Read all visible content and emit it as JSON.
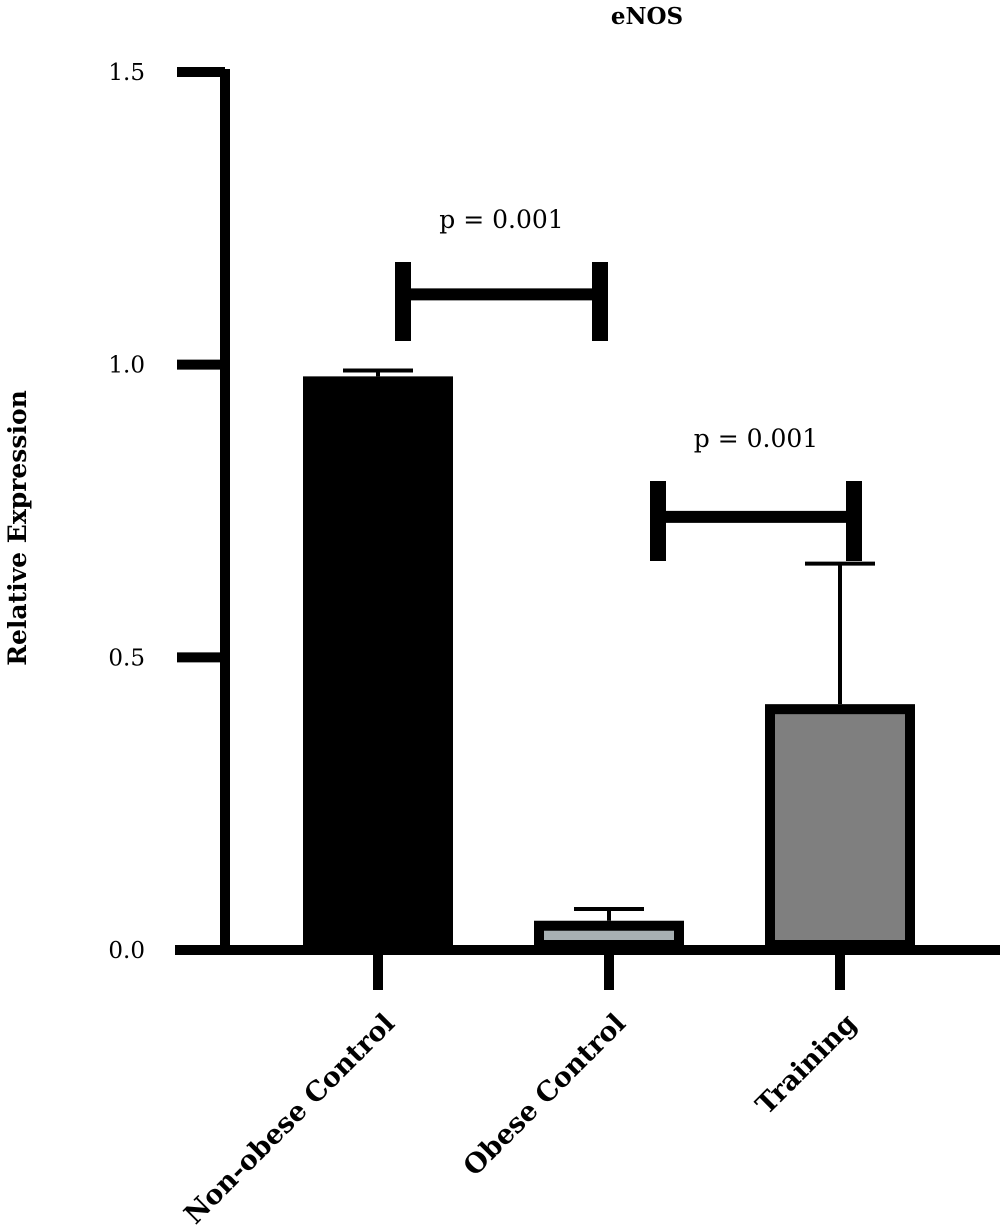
{
  "chart_data": {
    "type": "bar",
    "title": "eNOS",
    "xlabel": "",
    "ylabel": "Relative Expression",
    "ylim": [
      0,
      1.5
    ],
    "yticks": [
      {
        "value": 0.0,
        "label": "0.0"
      },
      {
        "value": 0.5,
        "label": "0.5"
      },
      {
        "value": 1.0,
        "label": "1.0"
      },
      {
        "value": 1.5,
        "label": "1.5"
      }
    ],
    "categories": [
      "Non-obese Control",
      "Obese Control",
      "Training"
    ],
    "values": [
      0.98,
      0.05,
      0.42
    ],
    "errors": [
      0.01,
      0.02,
      0.24
    ],
    "colors": [
      "#000000",
      "#a7b0b3",
      "#7f7f7f"
    ],
    "grid": false,
    "annotations": [
      {
        "text": "p = 0.001",
        "from": "Non-obese Control",
        "to": "Obese Control",
        "y": 1.12
      },
      {
        "text": "p = 0.001",
        "from": "Obese Control",
        "to": "Training",
        "y": 0.74
      }
    ]
  }
}
